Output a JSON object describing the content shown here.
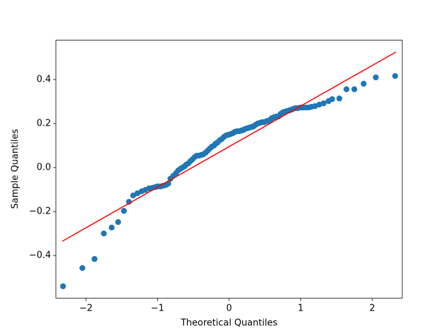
{
  "chart_data": {
    "type": "scatter",
    "xlabel": "Theoretical Quantiles",
    "ylabel": "Sample Quantiles",
    "xlim": [
      -2.42,
      2.42
    ],
    "ylim": [
      -0.594,
      0.579
    ],
    "xticks": [
      {
        "value": -2,
        "label": "−2"
      },
      {
        "value": -1,
        "label": "−1"
      },
      0,
      1,
      2
    ],
    "yticks": [
      {
        "value": -0.4,
        "label": "−0.4"
      },
      {
        "value": -0.2,
        "label": "−0.2"
      },
      {
        "value": 0,
        "label": "0.0"
      },
      0.2,
      0.4
    ],
    "grid": false,
    "series": [
      {
        "type": "scatter",
        "color": "#1f77b4",
        "x": [
          -2.32,
          -2.05,
          -1.88,
          -1.75,
          -1.64,
          -1.55,
          -1.47,
          -1.4,
          -1.34,
          -1.28,
          -1.22,
          -1.17,
          -1.12,
          -1.07,
          -1.03,
          -1.0,
          -0.96,
          -0.92,
          -0.88,
          -0.85,
          -0.82,
          -0.78,
          -0.74,
          -0.71,
          -0.68,
          -0.65,
          -0.62,
          -0.6,
          -0.57,
          -0.54,
          -0.51,
          -0.48,
          -0.45,
          -0.42,
          -0.39,
          -0.36,
          -0.33,
          -0.3,
          -0.27,
          -0.24,
          -0.21,
          -0.19,
          -0.16,
          -0.13,
          -0.1,
          -0.07,
          -0.04,
          -0.01,
          0.02,
          0.05,
          0.08,
          0.11,
          0.14,
          0.17,
          0.2,
          0.22,
          0.25,
          0.28,
          0.31,
          0.34,
          0.37,
          0.4,
          0.43,
          0.46,
          0.49,
          0.52,
          0.55,
          0.58,
          0.6,
          0.63,
          0.66,
          0.69,
          0.72,
          0.75,
          0.78,
          0.81,
          0.84,
          0.87,
          0.9,
          0.93,
          0.96,
          1.0,
          1.03,
          1.07,
          1.11,
          1.15,
          1.2,
          1.26,
          1.32,
          1.39,
          1.44,
          1.54,
          1.64,
          1.75,
          1.88,
          2.05,
          2.32
        ],
        "values": [
          -0.54,
          -0.457,
          -0.416,
          -0.3,
          -0.273,
          -0.248,
          -0.197,
          -0.156,
          -0.127,
          -0.117,
          -0.108,
          -0.102,
          -0.095,
          -0.092,
          -0.089,
          -0.086,
          -0.086,
          -0.083,
          -0.079,
          -0.073,
          -0.051,
          -0.038,
          -0.025,
          -0.013,
          -0.006,
          0.0,
          0.006,
          0.013,
          0.019,
          0.029,
          0.038,
          0.048,
          0.054,
          0.054,
          0.057,
          0.06,
          0.067,
          0.076,
          0.086,
          0.095,
          0.1,
          0.108,
          0.114,
          0.124,
          0.13,
          0.14,
          0.146,
          0.149,
          0.152,
          0.156,
          0.162,
          0.165,
          0.165,
          0.168,
          0.171,
          0.175,
          0.178,
          0.181,
          0.184,
          0.187,
          0.194,
          0.2,
          0.203,
          0.206,
          0.206,
          0.21,
          0.213,
          0.219,
          0.225,
          0.229,
          0.232,
          0.232,
          0.244,
          0.251,
          0.254,
          0.257,
          0.26,
          0.263,
          0.267,
          0.27,
          0.27,
          0.273,
          0.273,
          0.273,
          0.273,
          0.276,
          0.279,
          0.286,
          0.292,
          0.302,
          0.311,
          0.314,
          0.356,
          0.356,
          0.381,
          0.41,
          0.416
        ]
      },
      {
        "type": "line",
        "color": "#ff0000",
        "x": [
          -2.33,
          2.33
        ],
        "values": [
          -0.335,
          0.525
        ]
      }
    ]
  }
}
